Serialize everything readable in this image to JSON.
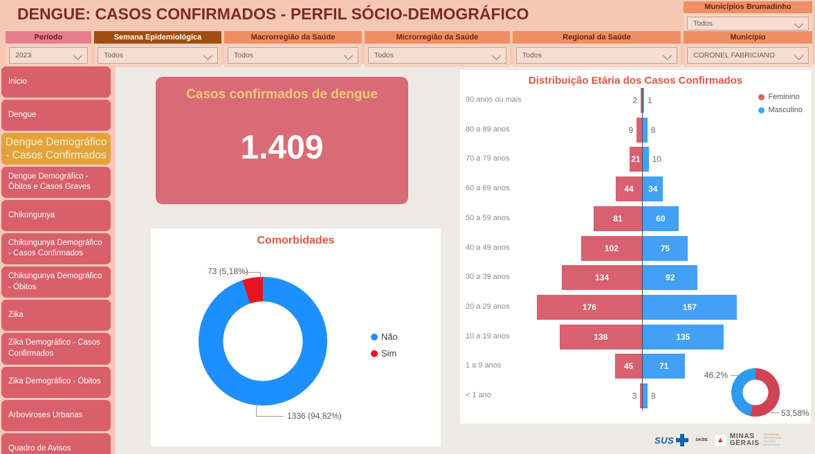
{
  "header": {
    "title": "DENGUE: CASOS CONFIRMADOS - PERFIL SÓCIO-DEMOGRÁFICO",
    "brumadinho": {
      "label": "Municípios Brumadinho",
      "value": "Todos"
    },
    "filters": [
      {
        "id": "periodo",
        "label": "Período",
        "value": "2023",
        "style": "pink"
      },
      {
        "id": "semana",
        "label": "Semana Epidemiológica",
        "value": "Todos",
        "style": "brown"
      },
      {
        "id": "macrorregiao",
        "label": "Macrorregião da Saúde",
        "value": "Todos",
        "style": "salmon"
      },
      {
        "id": "microrregiao",
        "label": "Microrregião da Saúde",
        "value": "Todos",
        "style": "salmon"
      },
      {
        "id": "regional",
        "label": "Regional da Saúde",
        "value": "Todos",
        "style": "salmon"
      },
      {
        "id": "municipio",
        "label": "Município",
        "value": "CORONEL FABRICIANO",
        "style": "salmon"
      }
    ]
  },
  "sidebar": {
    "items": [
      {
        "label": "Inicio",
        "active": false
      },
      {
        "label": "Dengue",
        "active": false
      },
      {
        "label": "Dengue Demográfico - Casos Confirmados",
        "active": true
      },
      {
        "label": "Dengue Demográfico - Óbitos e Casos Graves",
        "active": false
      },
      {
        "label": "Chikungunya",
        "active": false
      },
      {
        "label": "Chikungunya Demográfico - Casos Confirmados",
        "active": false
      },
      {
        "label": "Chikungunya Demográfico - Óbitos",
        "active": false
      },
      {
        "label": "Zika",
        "active": false
      },
      {
        "label": "Zika Demográfico - Casos Confirmados",
        "active": false
      },
      {
        "label": "Zika Demográfico - Óbitos",
        "active": false
      },
      {
        "label": "Arboviroses Urbanas",
        "active": false
      },
      {
        "label": "Quadro de Avisos",
        "active": false
      }
    ]
  },
  "kpi": {
    "title": "Casos confirmados de dengue",
    "value": "1.409"
  },
  "chart_data": [
    {
      "type": "bar",
      "variant": "population-pyramid",
      "title": "Distribuição Etária dos Casos Confirmados",
      "categories": [
        "90 anos ou mais",
        "80 a 89 anos",
        "70 a 79 anos",
        "60 a 69 anos",
        "50 a 59 anos",
        "40 a 49 anos",
        "30 a 39 anos",
        "20 a 29 anos",
        "10 a 19 anos",
        "1 a 9 anos",
        "< 1 ano"
      ],
      "series": [
        {
          "name": "Feminino",
          "color": "#d9606f",
          "values": [
            2,
            9,
            21,
            44,
            81,
            102,
            134,
            176,
            138,
            45,
            3
          ]
        },
        {
          "name": "Masculino",
          "color": "#42a1f5",
          "values": [
            1,
            8,
            10,
            34,
            60,
            75,
            92,
            157,
            135,
            71,
            8
          ]
        }
      ],
      "legend_position": "top-right",
      "donut_summary": {
        "labels": [
          "Masculino",
          "Feminino"
        ],
        "pcts": [
          "46,2%",
          "53,58%"
        ],
        "colors": [
          "#2e9af0",
          "#d04355"
        ]
      }
    },
    {
      "type": "pie",
      "variant": "donut",
      "title": "Comorbidades",
      "slices": [
        {
          "label": "Não",
          "value": 1336,
          "pct": "94,82%",
          "display": "1336 (94,82%)",
          "color": "#1e8fff"
        },
        {
          "label": "Sim",
          "value": 73,
          "pct": "5,18%",
          "display": "73 (5,18%)",
          "color": "#e8131f"
        }
      ],
      "legend_position": "right"
    }
  ],
  "colors": {
    "band": "#f7c8b1",
    "salmon_header": "#ef8e63",
    "pink_header": "#e87d8c",
    "brown_header": "#a04d0e",
    "sidebar_item": "#d95f6b",
    "sidebar_active": "#e3a23c",
    "kpi_card": "#d96b77",
    "kpi_title": "#f2c779",
    "chart_title": "#e0563c",
    "feminino": "#d9606f",
    "masculino": "#42a1f5"
  },
  "footer": {
    "sus_label": "SUS",
    "saude_label": "SAÚDE",
    "mg_line1": "MINAS",
    "mg_line2": "GERAIS",
    "tagline": [
      "GOVERNO",
      "DIFERENTE.",
      "ESTADO",
      "EFICIENTE."
    ]
  }
}
